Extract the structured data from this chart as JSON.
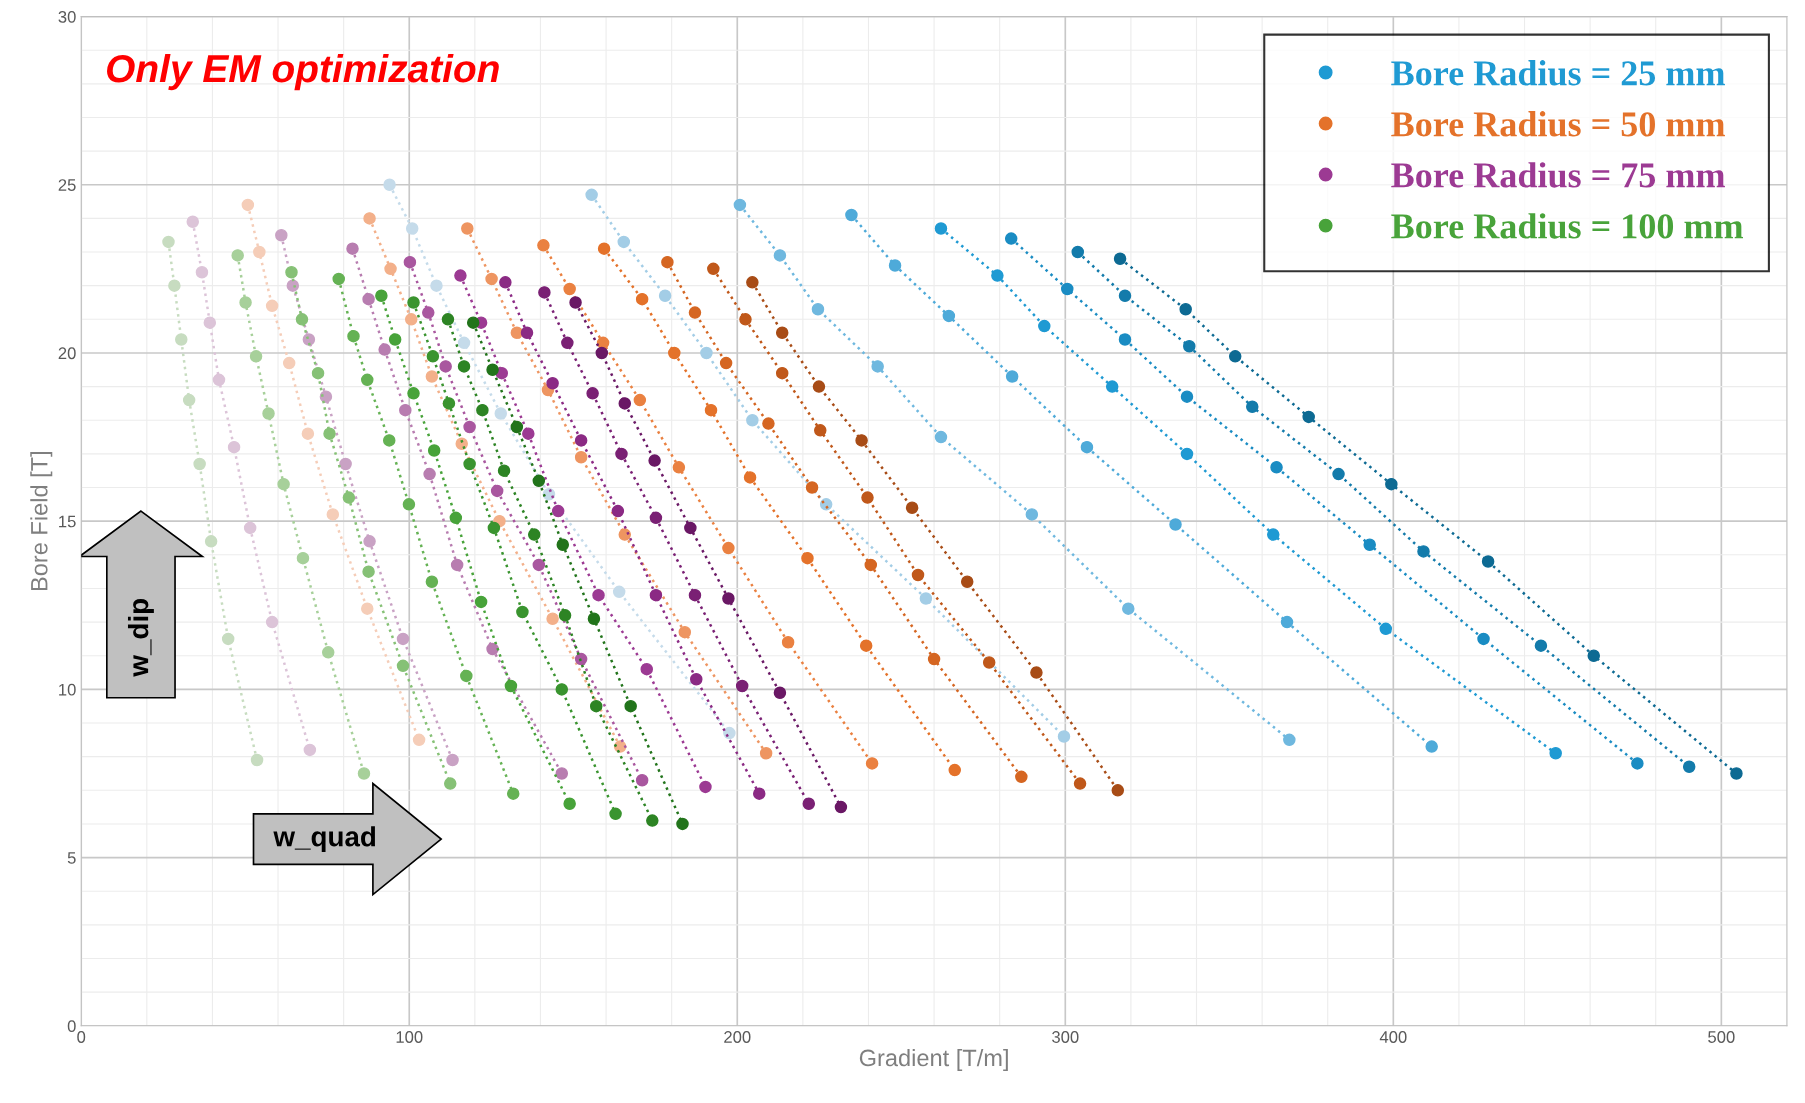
{
  "chart_data": {
    "type": "line",
    "title": "Only EM optimization",
    "xlabel": "Gradient [T/m]",
    "ylabel": "Bore Field [T]",
    "xlim": [
      0,
      520
    ],
    "ylim": [
      0,
      30
    ],
    "xticks": [
      0,
      {
        "value": 20,
        "label": null
      },
      {
        "value": 40,
        "label": null
      },
      {
        "value": 60,
        "label": null
      },
      {
        "value": 80,
        "label": null
      },
      100,
      {
        "value": 120,
        "label": null
      },
      {
        "value": 140,
        "label": null
      },
      {
        "value": 160,
        "label": null
      },
      {
        "value": 180,
        "label": null
      },
      200,
      {
        "value": 220,
        "label": null
      },
      {
        "value": 240,
        "label": null
      },
      {
        "value": 260,
        "label": null
      },
      {
        "value": 280,
        "label": null
      },
      300,
      {
        "value": 320,
        "label": null
      },
      {
        "value": 340,
        "label": null
      },
      {
        "value": 360,
        "label": null
      },
      {
        "value": 380,
        "label": null
      },
      400,
      {
        "value": 420,
        "label": null
      },
      {
        "value": 440,
        "label": null
      },
      {
        "value": 460,
        "label": null
      },
      {
        "value": 480,
        "label": null
      },
      500,
      {
        "value": 520,
        "label": null
      }
    ],
    "yticks": [
      0,
      {
        "value": 1,
        "label": null
      },
      {
        "value": 2,
        "label": null
      },
      {
        "value": 3,
        "label": null
      },
      {
        "value": 4,
        "label": null
      },
      5,
      {
        "value": 6,
        "label": null
      },
      {
        "value": 7,
        "label": null
      },
      {
        "value": 8,
        "label": null
      },
      {
        "value": 9,
        "label": null
      },
      10,
      {
        "value": 11,
        "label": null
      },
      {
        "value": 12,
        "label": null
      },
      {
        "value": 13,
        "label": null
      },
      {
        "value": 14,
        "label": null
      },
      15,
      {
        "value": 16,
        "label": null
      },
      {
        "value": 17,
        "label": null
      },
      {
        "value": 18,
        "label": null
      },
      {
        "value": 19,
        "label": null
      },
      20,
      {
        "value": 21,
        "label": null
      },
      {
        "value": 22,
        "label": null
      },
      {
        "value": 23,
        "label": null
      },
      {
        "value": 24,
        "label": null
      },
      25,
      {
        "value": 26,
        "label": null
      },
      {
        "value": 27,
        "label": null
      },
      {
        "value": 28,
        "label": null
      },
      {
        "value": 29,
        "label": null
      },
      30
    ],
    "grid": true,
    "legend": "top right",
    "marker": "circle",
    "line_style": "dotted",
    "annotations": [
      "w_dip",
      "w_quad"
    ],
    "series": [
      {
        "color": "#c5dbea",
        "x": [
          94,
          100.9,
          108.3,
          116.7,
          127.9,
          142.6,
          164.0,
          197.6
        ],
        "values": [
          25.0,
          23.7,
          22.0,
          20.3,
          18.2,
          15.8,
          12.9,
          8.7
        ]
      },
      {
        "color": "#a3cde6",
        "x": [
          155.6,
          165.4,
          178.0,
          190.6,
          204.6,
          227.1,
          257.5,
          299.6
        ],
        "values": [
          24.7,
          23.3,
          21.7,
          20.0,
          18.0,
          15.5,
          12.7,
          8.6
        ]
      },
      {
        "color": "#6fb8df",
        "x": [
          200.8,
          213.0,
          224.6,
          242.8,
          262.1,
          289.8,
          319.2,
          368.3
        ],
        "values": [
          24.4,
          22.9,
          21.3,
          19.6,
          17.5,
          15.2,
          12.4,
          8.5
        ]
      },
      {
        "color": "#4eaad9",
        "x": [
          234.8,
          248.1,
          264.5,
          283.8,
          306.6,
          333.6,
          367.6,
          411.7
        ],
        "values": [
          24.1,
          22.6,
          21.1,
          19.3,
          17.2,
          14.9,
          12.0,
          8.3
        ]
      },
      {
        "name": "Bore Radius = 25 mm",
        "color": "#1f9ad3",
        "x": [
          262.1,
          279.3,
          293.6,
          314.3,
          337.1,
          363.4,
          397.7,
          449.5
        ],
        "values": [
          23.7,
          22.3,
          20.8,
          19.0,
          17.0,
          14.6,
          11.8,
          8.1
        ]
      },
      {
        "color": "#1a8cc3",
        "x": [
          283.5,
          300.6,
          318.2,
          337.1,
          364.4,
          392.8,
          427.5,
          474.4
        ],
        "values": [
          23.4,
          21.9,
          20.4,
          18.7,
          16.6,
          14.3,
          11.5,
          7.8
        ]
      },
      {
        "color": "#137bab",
        "x": [
          303.8,
          318.2,
          337.8,
          357.0,
          383.3,
          409.2,
          445.0,
          490.2
        ],
        "values": [
          23.0,
          21.7,
          20.2,
          18.4,
          16.4,
          14.1,
          11.3,
          7.7
        ]
      },
      {
        "color": "#0d6a93",
        "x": [
          316.7,
          336.7,
          351.8,
          374.2,
          399.4,
          428.9,
          461.1,
          504.6
        ],
        "values": [
          22.8,
          21.3,
          19.9,
          18.1,
          16.1,
          13.8,
          11.0,
          7.5
        ]
      },
      {
        "color": "#f5cdb8",
        "x": [
          50.8,
          54.3,
          58.2,
          63.4,
          69.1,
          76.7,
          87.2,
          103.0
        ],
        "values": [
          24.4,
          23.0,
          21.4,
          19.7,
          17.6,
          15.2,
          12.4,
          8.5
        ]
      },
      {
        "color": "#f3b08a",
        "x": [
          87.9,
          94.3,
          100.6,
          106.9,
          116.0,
          127.5,
          143.7,
          164.3
        ],
        "values": [
          24.0,
          22.5,
          21.0,
          19.3,
          17.3,
          15.0,
          12.1,
          8.3
        ]
      },
      {
        "color": "#ee9561",
        "x": [
          117.7,
          125.1,
          132.8,
          142.3,
          152.4,
          165.7,
          184.0,
          208.8
        ],
        "values": [
          23.7,
          22.2,
          20.6,
          18.9,
          16.9,
          14.6,
          11.7,
          8.1
        ]
      },
      {
        "color": "#ea8141",
        "x": [
          140.9,
          148.9,
          159.1,
          170.3,
          182.2,
          197.3,
          215.5,
          241.1
        ],
        "values": [
          23.2,
          21.9,
          20.3,
          18.6,
          16.6,
          14.2,
          11.4,
          7.8
        ]
      },
      {
        "name": "Bore Radius = 50 mm",
        "color": "#e4722a",
        "x": [
          159.4,
          171.0,
          180.8,
          192.0,
          203.9,
          221.4,
          239.3,
          266.3
        ],
        "values": [
          23.1,
          21.6,
          20.0,
          18.3,
          16.3,
          13.9,
          11.3,
          7.6
        ]
      },
      {
        "color": "#d56622",
        "x": [
          178.7,
          187.1,
          196.6,
          209.5,
          222.8,
          240.7,
          260.0,
          286.6
        ],
        "values": [
          22.7,
          21.2,
          19.7,
          17.9,
          16.0,
          13.7,
          10.9,
          7.4
        ]
      },
      {
        "color": "#c0581a",
        "x": [
          192.7,
          202.5,
          213.7,
          225.3,
          239.7,
          255.1,
          276.8,
          304.5
        ],
        "values": [
          22.5,
          21.0,
          19.4,
          17.7,
          15.7,
          13.4,
          10.8,
          7.2
        ]
      },
      {
        "color": "#a84c16",
        "x": [
          204.6,
          213.7,
          224.9,
          237.9,
          253.3,
          270.1,
          291.2,
          316.0
        ],
        "values": [
          22.1,
          20.6,
          19.0,
          17.4,
          15.4,
          13.2,
          10.5,
          7.0
        ]
      },
      {
        "color": "#dcc4d8",
        "x": [
          34.0,
          36.8,
          39.2,
          42.0,
          46.6,
          51.5,
          58.2,
          69.7
        ],
        "values": [
          23.9,
          22.4,
          20.9,
          19.2,
          17.2,
          14.8,
          12.0,
          8.2
        ]
      },
      {
        "color": "#c9a2c4",
        "x": [
          61.0,
          64.5,
          69.4,
          74.6,
          80.6,
          87.9,
          98.1,
          113.2
        ],
        "values": [
          23.5,
          22.0,
          20.4,
          18.7,
          16.7,
          14.4,
          11.5,
          7.9
        ]
      },
      {
        "color": "#b87db0",
        "x": [
          82.7,
          87.6,
          92.5,
          98.8,
          106.2,
          114.6,
          125.4,
          146.5
        ],
        "values": [
          23.1,
          21.6,
          20.1,
          18.3,
          16.4,
          13.7,
          11.2,
          7.5
        ]
      },
      {
        "color": "#a9579f",
        "x": [
          100.2,
          105.8,
          111.1,
          118.4,
          126.8,
          139.5,
          152.4,
          171.0
        ],
        "values": [
          22.7,
          21.2,
          19.6,
          17.8,
          15.9,
          13.7,
          10.9,
          7.3
        ]
      },
      {
        "name": "Bore Radius = 75 mm",
        "color": "#9c3a93",
        "x": [
          115.6,
          121.9,
          128.2,
          136.3,
          145.4,
          157.7,
          172.4,
          190.3
        ],
        "values": [
          22.3,
          20.9,
          19.4,
          17.6,
          15.3,
          12.8,
          10.6,
          7.1
        ]
      },
      {
        "color": "#8b2a84",
        "x": [
          129.3,
          135.9,
          143.7,
          152.4,
          163.6,
          175.2,
          187.5,
          206.7
        ],
        "values": [
          22.1,
          20.6,
          19.1,
          17.4,
          15.3,
          12.8,
          10.3,
          6.9
        ]
      },
      {
        "color": "#7a2074",
        "x": [
          141.2,
          148.2,
          155.9,
          164.7,
          175.2,
          187.1,
          201.5,
          221.8
        ],
        "values": [
          21.8,
          20.3,
          18.8,
          17.0,
          15.1,
          12.8,
          10.1,
          6.6
        ]
      },
      {
        "color": "#6a1865",
        "x": [
          150.7,
          158.7,
          165.7,
          174.8,
          185.7,
          197.3,
          213.0,
          231.6
        ],
        "values": [
          21.5,
          20.0,
          18.5,
          16.8,
          14.8,
          12.7,
          9.9,
          6.5
        ]
      },
      {
        "color": "#c7dcc0",
        "x": [
          26.6,
          28.4,
          30.5,
          32.9,
          36.1,
          39.6,
          44.8,
          53.6
        ],
        "values": [
          23.3,
          22.0,
          20.4,
          18.6,
          16.7,
          14.4,
          11.5,
          7.9
        ]
      },
      {
        "color": "#a7d09a",
        "x": [
          47.7,
          50.1,
          53.3,
          57.1,
          61.7,
          67.6,
          75.3,
          86.2
        ],
        "values": [
          22.9,
          21.5,
          19.9,
          18.2,
          16.1,
          13.9,
          11.1,
          7.5
        ]
      },
      {
        "color": "#86c176",
        "x": [
          64.1,
          67.3,
          72.2,
          75.7,
          81.6,
          87.6,
          98.1,
          112.5
        ],
        "values": [
          22.4,
          21.0,
          19.4,
          17.6,
          15.7,
          13.5,
          10.7,
          7.2
        ]
      },
      {
        "color": "#65b254",
        "x": [
          78.5,
          83.0,
          87.2,
          93.9,
          99.9,
          106.9,
          117.4,
          131.7
        ],
        "values": [
          22.2,
          20.5,
          19.2,
          17.4,
          15.5,
          13.2,
          10.4,
          6.9
        ]
      },
      {
        "name": "Bore Radius = 100 mm",
        "color": "#48a33a",
        "x": [
          91.5,
          95.7,
          101.3,
          107.6,
          114.2,
          121.9,
          131.0,
          148.9
        ],
        "values": [
          21.7,
          20.4,
          18.8,
          17.1,
          15.1,
          12.6,
          10.1,
          6.6
        ]
      },
      {
        "color": "#3a942f",
        "x": [
          101.3,
          107.2,
          112.1,
          118.4,
          125.8,
          134.5,
          146.5,
          162.9
        ],
        "values": [
          21.5,
          19.9,
          18.5,
          16.7,
          14.8,
          12.3,
          10.0,
          6.3
        ]
      },
      {
        "color": "#2d8424",
        "x": [
          111.8,
          116.7,
          122.3,
          128.9,
          138.1,
          147.5,
          157.0,
          174.1
        ],
        "values": [
          21.0,
          19.6,
          18.3,
          16.5,
          14.6,
          12.2,
          9.5,
          6.1
        ]
      },
      {
        "color": "#22741b",
        "x": [
          119.5,
          125.4,
          132.8,
          139.5,
          146.8,
          156.3,
          167.5,
          183.3
        ],
        "values": [
          20.9,
          19.5,
          17.8,
          16.2,
          14.3,
          12.1,
          9.5,
          6.0
        ]
      }
    ]
  }
}
